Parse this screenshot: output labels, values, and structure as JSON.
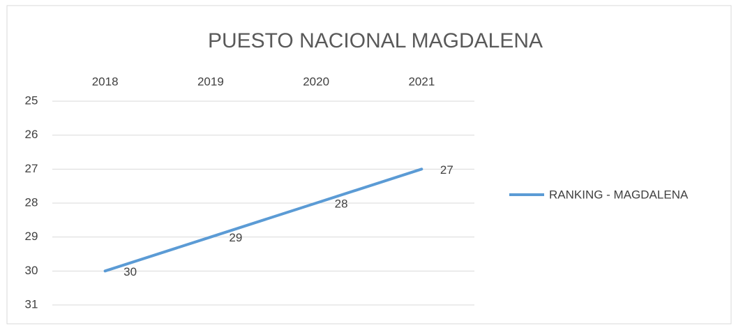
{
  "chart_data": {
    "type": "line",
    "title": "PUESTO NACIONAL MAGDALENA",
    "categories": [
      "2018",
      "2019",
      "2020",
      "2021"
    ],
    "series": [
      {
        "name": "RANKING - MAGDALENA",
        "color": "#5b9bd5",
        "values": [
          30,
          29,
          28,
          27
        ]
      }
    ],
    "ylim": [
      25,
      31
    ],
    "yticks": [
      25,
      26,
      27,
      28,
      29,
      30,
      31
    ],
    "y_reversed": true,
    "x_axis_position": "top",
    "grid": true,
    "data_labels": true,
    "legend": "right"
  }
}
